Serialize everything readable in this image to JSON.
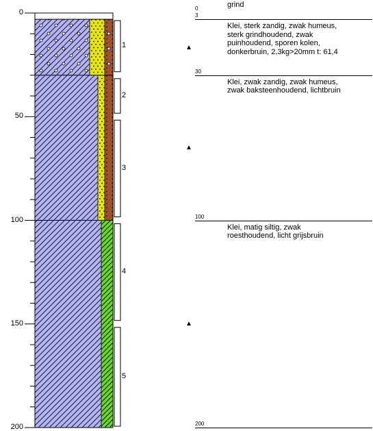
{
  "axis": {
    "ticks": [
      {
        "depth": 0,
        "label": "0"
      },
      {
        "depth": 50,
        "label": "50"
      },
      {
        "depth": 100,
        "label": "100"
      },
      {
        "depth": 150,
        "label": "150"
      },
      {
        "depth": 200,
        "label": "200"
      }
    ],
    "min": 0,
    "max": 200
  },
  "layers": [
    {
      "top": 0,
      "bottom": 3,
      "top_label": "0",
      "bottom_label": "3",
      "description": [
        "grind"
      ]
    },
    {
      "top": 3,
      "bottom": 30,
      "top_label": "",
      "bottom_label": "30",
      "description": [
        "Klei, sterk zandig, zwak humeus,",
        "sterk grindhoudend, zwak",
        "puinhoudend, sporen kolen,",
        "donkerbruin, 2,3kg>20mm t: 61,4"
      ]
    },
    {
      "top": 30,
      "bottom": 100,
      "top_label": "",
      "bottom_label": "100",
      "description": [
        "Klei, zwak zandig, zwak humeus,",
        "zwak baksteenhoudend, lichtbruin"
      ]
    },
    {
      "top": 100,
      "bottom": 200,
      "top_label": "",
      "bottom_label": "200",
      "description": [
        "Klei, matig siltig, zwak",
        "roesthoudend, licht grijsbruin"
      ]
    }
  ],
  "samples": [
    {
      "label": "1",
      "top": 3,
      "bottom": 29
    },
    {
      "label": "2",
      "top": 31,
      "bottom": 49
    },
    {
      "label": "3",
      "top": 51,
      "bottom": 99
    },
    {
      "label": "4",
      "top": 101,
      "bottom": 149
    },
    {
      "label": "5",
      "top": 151,
      "bottom": 200
    }
  ],
  "markers": [
    {
      "depth": 17,
      "symbol": "▲"
    },
    {
      "depth": 65,
      "symbol": "▲"
    },
    {
      "depth": 150,
      "symbol": "▲"
    }
  ],
  "colors": {
    "clay": "#b3b3f0",
    "sand": "#e6e600",
    "humus": "#a0522d",
    "silt": "#66dd22",
    "border": "#000000"
  }
}
